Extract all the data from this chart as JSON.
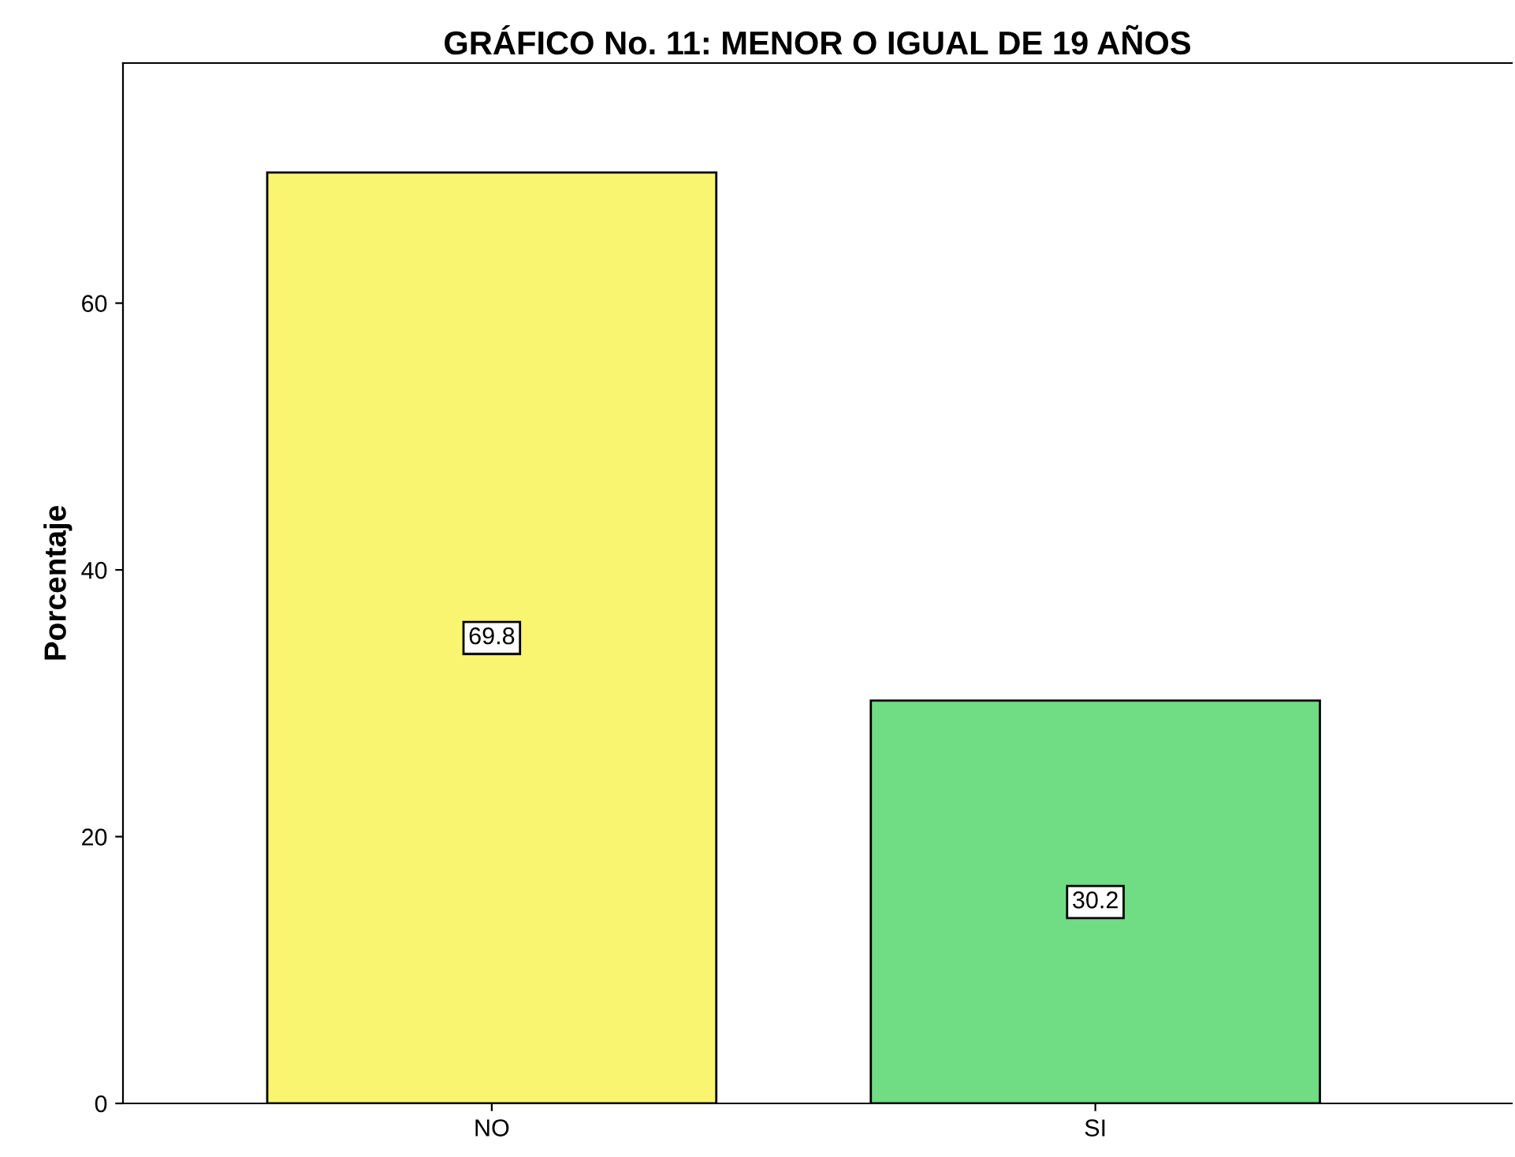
{
  "chart_data": {
    "type": "bar",
    "title": "GRÁFICO No. 11: MENOR O IGUAL DE 19 AÑOS",
    "ylabel": "Porcentaje",
    "categories": [
      "NO",
      "SI"
    ],
    "values": [
      69.8,
      30.2
    ],
    "colors": [
      "#f9f571",
      "#70dc84"
    ],
    "ylim": [
      0,
      78
    ],
    "yticks": [
      0,
      20,
      40,
      60
    ],
    "grid": false,
    "data_labels": true
  }
}
